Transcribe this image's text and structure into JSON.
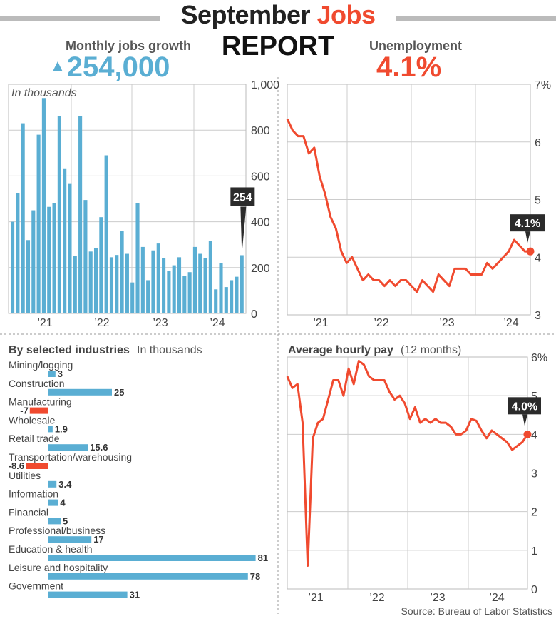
{
  "header": {
    "title_part1": "September",
    "title_part2": "Jobs",
    "title_line2": "REPORT",
    "jobs_label": "Monthly jobs growth",
    "jobs_value": "254,000",
    "jobs_arrow_icon": "triangle-up-icon",
    "unemployment_label": "Unemployment",
    "unemployment_value": "4.1%"
  },
  "colors": {
    "blue": "#5aaed3",
    "red": "#f04a2f",
    "callout": "#2b2b2b"
  },
  "source": "Source: Bureau of Labor Statistics",
  "chart_data": [
    {
      "type": "bar",
      "subtitle": "In thousands",
      "ylim": [
        0,
        1000
      ],
      "yticks": [
        "0",
        "200",
        "400",
        "600",
        "800",
        "1,000"
      ],
      "xticks": [
        "’21",
        "’22",
        "’23",
        "’24"
      ],
      "grid": true,
      "values": [
        400,
        525,
        830,
        320,
        450,
        780,
        940,
        465,
        480,
        860,
        630,
        565,
        250,
        860,
        495,
        270,
        285,
        420,
        690,
        245,
        255,
        360,
        260,
        135,
        480,
        290,
        145,
        275,
        305,
        240,
        185,
        210,
        245,
        165,
        180,
        290,
        260,
        240,
        315,
        105,
        220,
        115,
        145,
        160,
        254
      ],
      "callout": "254"
    },
    {
      "type": "line",
      "ylim": [
        3,
        7
      ],
      "yticks": [
        "3",
        "4",
        "5",
        "6",
        "7%"
      ],
      "xticks": [
        "’21",
        "’22",
        "’23",
        "’24"
      ],
      "grid": true,
      "values": [
        6.4,
        6.2,
        6.1,
        6.1,
        5.8,
        5.9,
        5.4,
        5.1,
        4.7,
        4.5,
        4.1,
        3.9,
        4.0,
        3.8,
        3.6,
        3.7,
        3.6,
        3.6,
        3.5,
        3.6,
        3.5,
        3.6,
        3.6,
        3.5,
        3.4,
        3.6,
        3.5,
        3.4,
        3.7,
        3.6,
        3.5,
        3.8,
        3.8,
        3.8,
        3.7,
        3.7,
        3.7,
        3.9,
        3.8,
        3.9,
        4.0,
        4.1,
        4.3,
        4.2,
        4.1,
        4.1
      ],
      "callout": "4.1%"
    },
    {
      "type": "bar",
      "title": "By selected industries",
      "subtitle": "In thousands",
      "categories": [
        "Mining/logging",
        "Construction",
        "Manufacturing",
        "Wholesale",
        "Retail trade",
        "Transportation/warehousing",
        "Utilities",
        "Information",
        "Financial",
        "Professional/business",
        "Education & health",
        "Leisure and hospitality",
        "Government"
      ],
      "values": [
        3,
        25,
        -7,
        1.9,
        15.6,
        -8.6,
        3.4,
        4,
        5,
        17,
        81,
        78,
        31
      ],
      "labels": [
        "3",
        "25",
        "-7",
        "1.9",
        "15.6",
        "-8.6",
        "3.4",
        "4",
        "5",
        "17",
        "81",
        "78",
        "31"
      ]
    },
    {
      "type": "line",
      "title": "Average hourly pay",
      "subtitle": "(12 months)",
      "ylim": [
        0,
        6
      ],
      "yticks": [
        "0",
        "1",
        "2",
        "3",
        "4",
        "5",
        "6%"
      ],
      "xticks": [
        "’21",
        "’22",
        "’23",
        "’24"
      ],
      "grid": true,
      "values": [
        5.5,
        5.2,
        5.3,
        4.3,
        0.6,
        3.9,
        4.3,
        4.4,
        4.9,
        5.4,
        5.4,
        5.0,
        5.7,
        5.3,
        5.9,
        5.8,
        5.5,
        5.4,
        5.4,
        5.4,
        5.1,
        4.9,
        5.0,
        4.8,
        4.4,
        4.7,
        4.3,
        4.4,
        4.3,
        4.4,
        4.3,
        4.3,
        4.2,
        4.0,
        4.0,
        4.1,
        4.4,
        4.35,
        4.1,
        3.9,
        4.1,
        4.0,
        3.9,
        3.8,
        3.6,
        3.7,
        3.8,
        4.0
      ],
      "callout": "4.0%"
    }
  ]
}
